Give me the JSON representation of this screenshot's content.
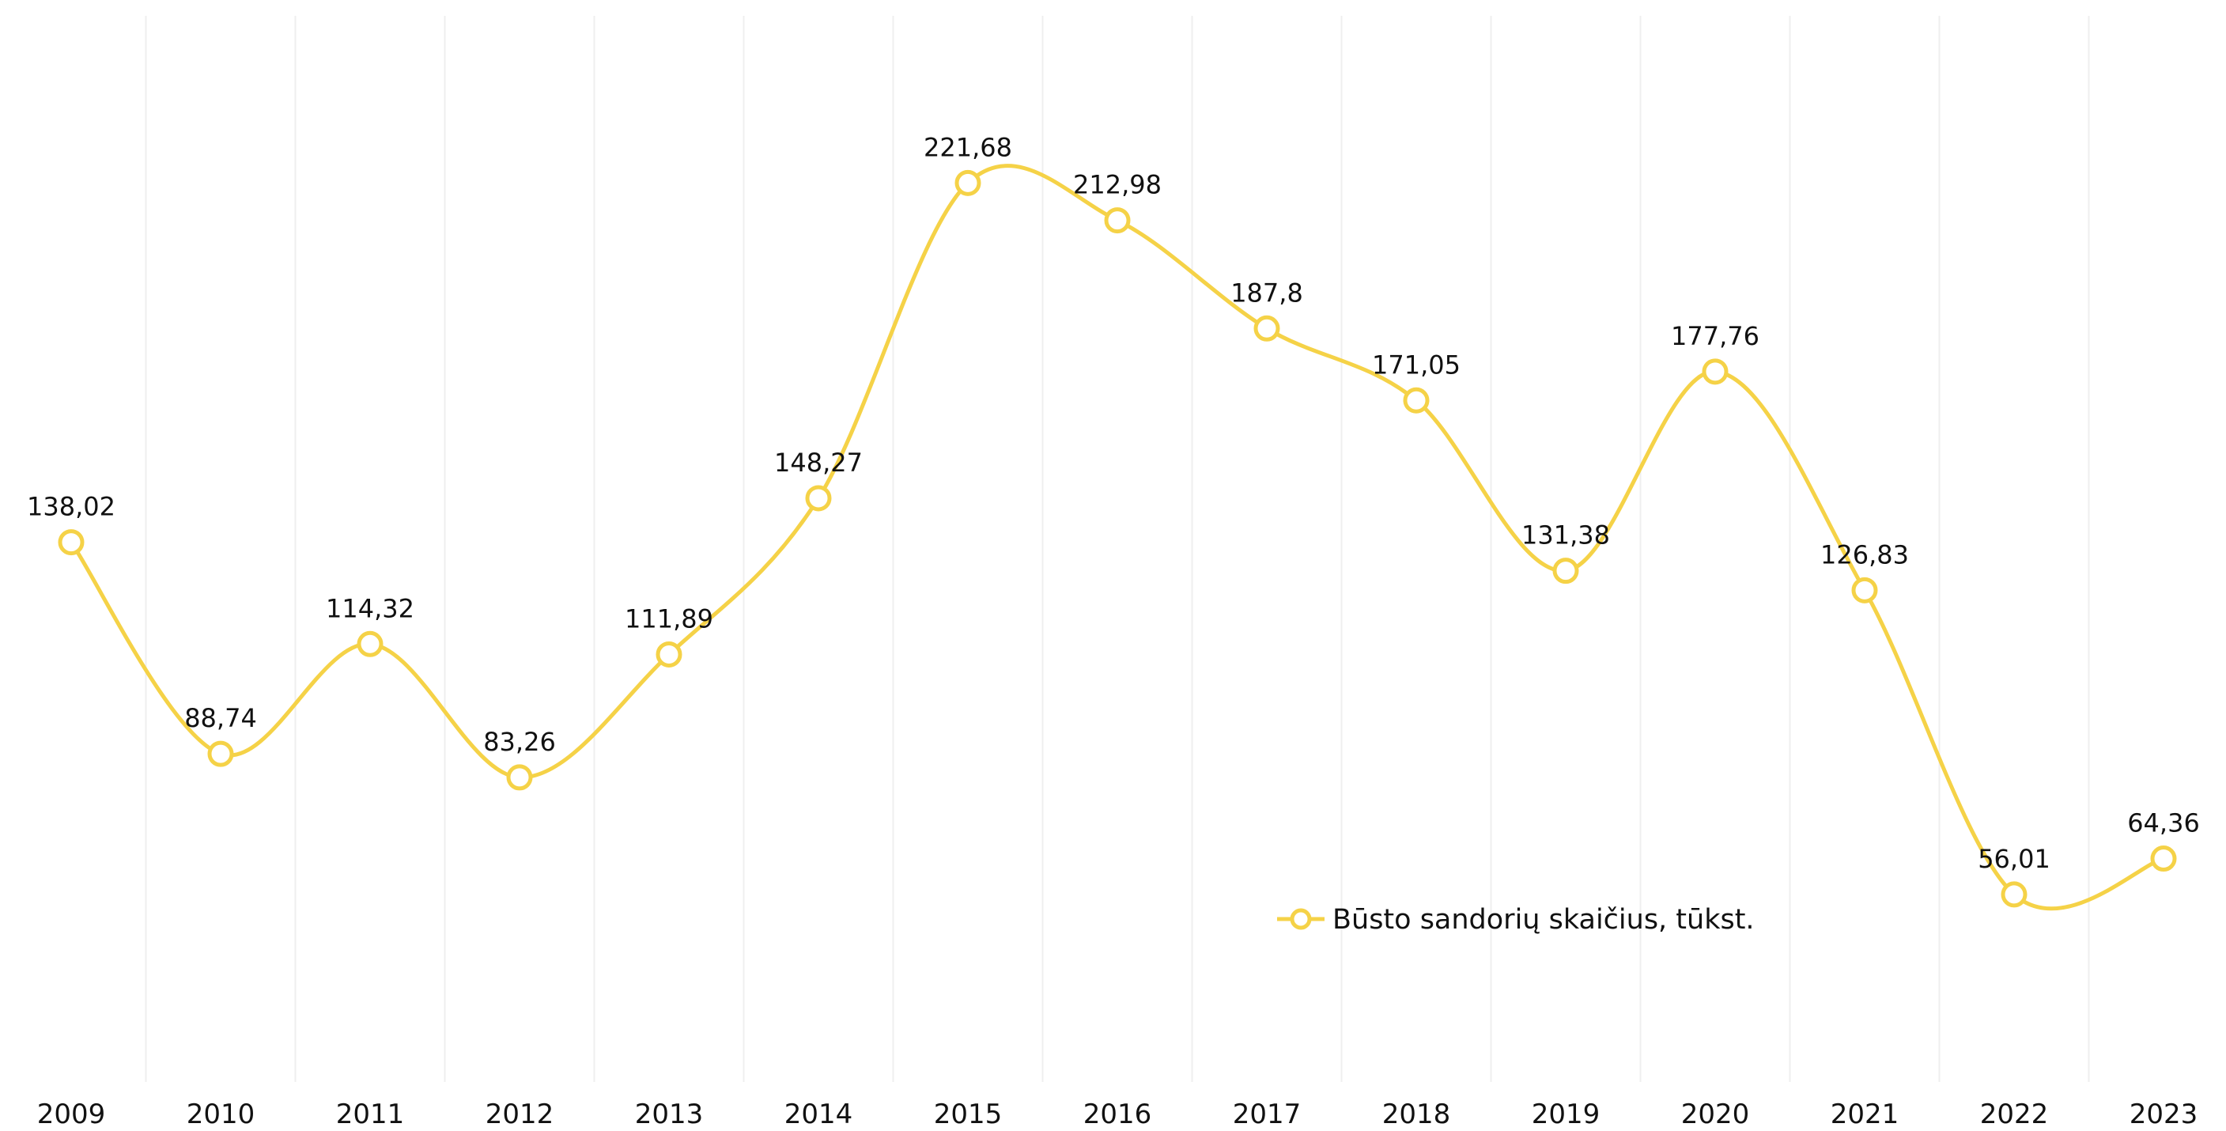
{
  "chart_data": {
    "type": "line",
    "categories": [
      "2009",
      "2010",
      "2011",
      "2012",
      "2013",
      "2014",
      "2015",
      "2016",
      "2017",
      "2018",
      "2019",
      "2020",
      "2021",
      "2022",
      "2023"
    ],
    "series": [
      {
        "name": "Būsto sandorių skaičius, tūkst.",
        "values": [
          138.02,
          88.74,
          114.32,
          83.26,
          111.89,
          148.27,
          221.68,
          212.98,
          187.8,
          171.05,
          131.38,
          177.76,
          126.83,
          56.01,
          64.36
        ],
        "labels": [
          "138,02",
          "88,74",
          "114,32",
          "83,26",
          "111,89",
          "148,27",
          "221,68",
          "212,98",
          "187,8",
          "171,05",
          "131,38",
          "177,76",
          "126,83",
          "56,01",
          "64,36"
        ],
        "color": "#f5d247"
      }
    ],
    "title": "",
    "xlabel": "",
    "ylabel": "",
    "ylim": [
      0,
      256
    ],
    "grid": "vertical",
    "legend_position": "lower-right",
    "curve": "smooth"
  }
}
